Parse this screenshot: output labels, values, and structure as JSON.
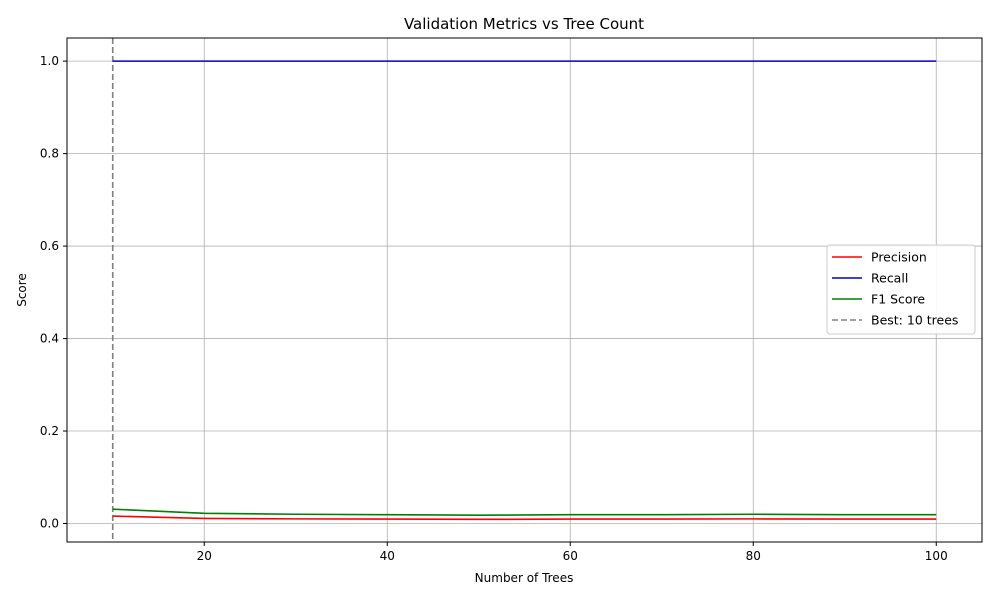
{
  "chart_data": {
    "type": "line",
    "title": "Validation Metrics vs Tree Count",
    "xlabel": "Number of Trees",
    "ylabel": "Score",
    "xlim": [
      5,
      105
    ],
    "ylim": [
      -0.04,
      1.05
    ],
    "xticks": [
      20,
      40,
      60,
      80,
      100
    ],
    "yticks": [
      0.0,
      0.2,
      0.4,
      0.6,
      0.8,
      1.0
    ],
    "xtick_labels": [
      "20",
      "40",
      "60",
      "80",
      "100"
    ],
    "ytick_labels": [
      "0.0",
      "0.2",
      "0.4",
      "0.6",
      "0.8",
      "1.0"
    ],
    "grid": true,
    "legend_position": "center-right",
    "x": [
      10,
      20,
      30,
      40,
      50,
      60,
      70,
      80,
      90,
      100
    ],
    "series": [
      {
        "name": "Precision",
        "color": "#ff0000",
        "style": "solid",
        "values": [
          0.016,
          0.011,
          0.01,
          0.0095,
          0.009,
          0.0095,
          0.0095,
          0.01,
          0.0095,
          0.0095
        ]
      },
      {
        "name": "Recall",
        "color": "#0000cc",
        "style": "solid",
        "values": [
          1.0,
          1.0,
          1.0,
          1.0,
          1.0,
          1.0,
          1.0,
          1.0,
          1.0,
          1.0
        ]
      },
      {
        "name": "F1 Score",
        "color": "#008000",
        "style": "solid",
        "values": [
          0.031,
          0.022,
          0.02,
          0.019,
          0.018,
          0.019,
          0.019,
          0.02,
          0.019,
          0.019
        ]
      }
    ],
    "reference_lines": [
      {
        "name": "Best: 10 trees",
        "orientation": "vertical",
        "x": 10,
        "color": "#808080",
        "style": "dashed"
      }
    ]
  }
}
